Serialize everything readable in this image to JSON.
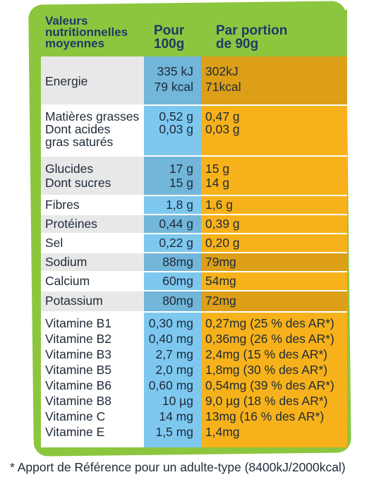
{
  "header": {
    "nutrition_title_lines": [
      "Valeurs",
      "nutritionnelles",
      "moyennes"
    ],
    "per100_lines": [
      "Pour",
      "100g"
    ],
    "portion_lines": [
      "Par portion",
      "de 90g"
    ]
  },
  "rows": [
    {
      "label": "Energie",
      "per100_kj": "335 kJ",
      "per100_kcal": "79 kcal",
      "portion_kj": "302kJ",
      "portion_kcal": "71kcal"
    },
    {
      "label": "Matières grasses",
      "per100": "0,52 g",
      "portion": "0,47 g"
    },
    {
      "label_lines": [
        "Dont acides",
        "gras saturés"
      ],
      "per100": "0,03 g",
      "portion": "0,03 g"
    },
    {
      "label": "Glucides",
      "per100": "17 g",
      "portion": "15 g"
    },
    {
      "label": "Dont sucres",
      "per100": "15 g",
      "portion": "14 g"
    },
    {
      "label": "Fibres",
      "per100": "1,8 g",
      "portion": "1,6 g"
    },
    {
      "label": "Protéines",
      "per100": "0,44 g",
      "portion": "0,39 g"
    },
    {
      "label": "Sel",
      "per100": "0,22 g",
      "portion": "0,20 g"
    },
    {
      "label": "Sodium",
      "per100": "88mg",
      "portion": "79mg"
    },
    {
      "label": "Calcium",
      "per100": "60mg",
      "portion": "54mg"
    },
    {
      "label": "Potassium",
      "per100": "80mg",
      "portion": "72mg"
    }
  ],
  "vitamins": [
    {
      "label": "Vitamine B1",
      "per100": "0,30 mg",
      "portion": "0,27mg (25 % des AR*)"
    },
    {
      "label": "Vitamine B2",
      "per100": "0,40 mg",
      "portion": "0,36mg (26 % des AR*)"
    },
    {
      "label": "Vitamine B3",
      "per100": "2,7 mg",
      "portion": "2,4mg (15 % des AR*)"
    },
    {
      "label": "Vitamine B5",
      "per100": "2,0 mg",
      "portion": "1,8mg (30 % des AR*)"
    },
    {
      "label": "Vitamine B6",
      "per100": "0,60 mg",
      "portion": "0,54mg (39 % des AR*)"
    },
    {
      "label": "Vitamine B8",
      "per100": "10 µg",
      "portion": "9,0 µg (18 % des AR*)"
    },
    {
      "label": "Vitamine C",
      "per100": "14 mg",
      "portion": "13mg (16 % des AR*)"
    },
    {
      "label": "Vitamine E",
      "per100": "1,5 mg",
      "portion": "1,4mg"
    }
  ],
  "footnote": "* Apport de Référence pour un adulte-type (8400kJ/2000kcal)",
  "colors": {
    "frame": "#8cc63f",
    "per100_column": "#7ec8f0",
    "portion_column": "#f7b21b"
  }
}
